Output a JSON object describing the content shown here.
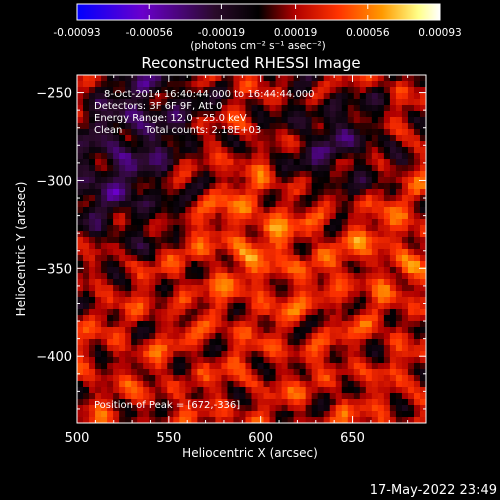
{
  "chart_data": {
    "type": "heatmap",
    "title": "Reconstructed RHESSI Image",
    "xlabel": "Heliocentric X (arcsec)",
    "ylabel": "Heliocentric Y (arcsec)",
    "xlim": [
      500,
      690
    ],
    "ylim": [
      -438,
      -240
    ],
    "x_ticks": [
      500,
      550,
      600,
      650
    ],
    "y_ticks": [
      -250,
      -300,
      -350,
      -400
    ],
    "colorbar": {
      "ticks": [
        -0.00093,
        -0.00056,
        -0.00019,
        0.00019,
        0.00056,
        0.00093
      ],
      "tick_labels": [
        "-0.00093",
        "-0.00056",
        "-0.00019",
        "0.00019",
        "0.00056",
        "0.00093"
      ],
      "unit_label": "(photons cm⁻² s⁻¹ asec⁻²)",
      "range": [
        -0.00093,
        0.00093
      ],
      "colormap": [
        "#0000ff",
        "#6a00cc",
        "#2a0a2a",
        "#000000",
        "#b00000",
        "#ff3300",
        "#ff9900",
        "#ffff88",
        "#ffffff"
      ]
    },
    "annotations": [
      "8-Oct-2014 16:40:44.000 to 16:44:44.000",
      "Detectors: 3F 6F 9F, Att 0",
      "Energy Range: 12.0 - 25.0 keV",
      "Clean",
      "Total counts: 2.18E+03",
      "Position of Peak = [672,-336]"
    ],
    "peak": {
      "x": 672,
      "y": -336
    },
    "grid": false
  },
  "footer": {
    "timestamp": "17-May-2022 23:49"
  }
}
